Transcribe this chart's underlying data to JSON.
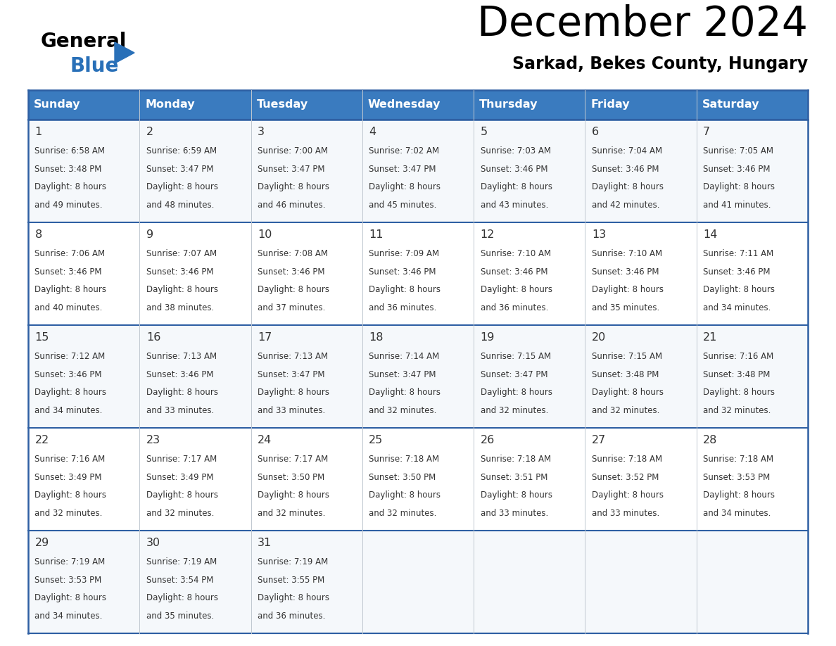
{
  "title": "December 2024",
  "subtitle": "Sarkad, Bekes County, Hungary",
  "header_bg_color": "#3a7bbf",
  "header_text_color": "#ffffff",
  "cell_bg_color": "#f0f4f8",
  "border_color": "#2e5fa3",
  "text_color": "#333333",
  "days_of_week": [
    "Sunday",
    "Monday",
    "Tuesday",
    "Wednesday",
    "Thursday",
    "Friday",
    "Saturday"
  ],
  "calendar_data": [
    [
      {
        "day": 1,
        "sunrise": "6:58 AM",
        "sunset": "3:48 PM",
        "daylight_line1": "8 hours",
        "daylight_line2": "and 49 minutes."
      },
      {
        "day": 2,
        "sunrise": "6:59 AM",
        "sunset": "3:47 PM",
        "daylight_line1": "8 hours",
        "daylight_line2": "and 48 minutes."
      },
      {
        "day": 3,
        "sunrise": "7:00 AM",
        "sunset": "3:47 PM",
        "daylight_line1": "8 hours",
        "daylight_line2": "and 46 minutes."
      },
      {
        "day": 4,
        "sunrise": "7:02 AM",
        "sunset": "3:47 PM",
        "daylight_line1": "8 hours",
        "daylight_line2": "and 45 minutes."
      },
      {
        "day": 5,
        "sunrise": "7:03 AM",
        "sunset": "3:46 PM",
        "daylight_line1": "8 hours",
        "daylight_line2": "and 43 minutes."
      },
      {
        "day": 6,
        "sunrise": "7:04 AM",
        "sunset": "3:46 PM",
        "daylight_line1": "8 hours",
        "daylight_line2": "and 42 minutes."
      },
      {
        "day": 7,
        "sunrise": "7:05 AM",
        "sunset": "3:46 PM",
        "daylight_line1": "8 hours",
        "daylight_line2": "and 41 minutes."
      }
    ],
    [
      {
        "day": 8,
        "sunrise": "7:06 AM",
        "sunset": "3:46 PM",
        "daylight_line1": "8 hours",
        "daylight_line2": "and 40 minutes."
      },
      {
        "day": 9,
        "sunrise": "7:07 AM",
        "sunset": "3:46 PM",
        "daylight_line1": "8 hours",
        "daylight_line2": "and 38 minutes."
      },
      {
        "day": 10,
        "sunrise": "7:08 AM",
        "sunset": "3:46 PM",
        "daylight_line1": "8 hours",
        "daylight_line2": "and 37 minutes."
      },
      {
        "day": 11,
        "sunrise": "7:09 AM",
        "sunset": "3:46 PM",
        "daylight_line1": "8 hours",
        "daylight_line2": "and 36 minutes."
      },
      {
        "day": 12,
        "sunrise": "7:10 AM",
        "sunset": "3:46 PM",
        "daylight_line1": "8 hours",
        "daylight_line2": "and 36 minutes."
      },
      {
        "day": 13,
        "sunrise": "7:10 AM",
        "sunset": "3:46 PM",
        "daylight_line1": "8 hours",
        "daylight_line2": "and 35 minutes."
      },
      {
        "day": 14,
        "sunrise": "7:11 AM",
        "sunset": "3:46 PM",
        "daylight_line1": "8 hours",
        "daylight_line2": "and 34 minutes."
      }
    ],
    [
      {
        "day": 15,
        "sunrise": "7:12 AM",
        "sunset": "3:46 PM",
        "daylight_line1": "8 hours",
        "daylight_line2": "and 34 minutes."
      },
      {
        "day": 16,
        "sunrise": "7:13 AM",
        "sunset": "3:46 PM",
        "daylight_line1": "8 hours",
        "daylight_line2": "and 33 minutes."
      },
      {
        "day": 17,
        "sunrise": "7:13 AM",
        "sunset": "3:47 PM",
        "daylight_line1": "8 hours",
        "daylight_line2": "and 33 minutes."
      },
      {
        "day": 18,
        "sunrise": "7:14 AM",
        "sunset": "3:47 PM",
        "daylight_line1": "8 hours",
        "daylight_line2": "and 32 minutes."
      },
      {
        "day": 19,
        "sunrise": "7:15 AM",
        "sunset": "3:47 PM",
        "daylight_line1": "8 hours",
        "daylight_line2": "and 32 minutes."
      },
      {
        "day": 20,
        "sunrise": "7:15 AM",
        "sunset": "3:48 PM",
        "daylight_line1": "8 hours",
        "daylight_line2": "and 32 minutes."
      },
      {
        "day": 21,
        "sunrise": "7:16 AM",
        "sunset": "3:48 PM",
        "daylight_line1": "8 hours",
        "daylight_line2": "and 32 minutes."
      }
    ],
    [
      {
        "day": 22,
        "sunrise": "7:16 AM",
        "sunset": "3:49 PM",
        "daylight_line1": "8 hours",
        "daylight_line2": "and 32 minutes."
      },
      {
        "day": 23,
        "sunrise": "7:17 AM",
        "sunset": "3:49 PM",
        "daylight_line1": "8 hours",
        "daylight_line2": "and 32 minutes."
      },
      {
        "day": 24,
        "sunrise": "7:17 AM",
        "sunset": "3:50 PM",
        "daylight_line1": "8 hours",
        "daylight_line2": "and 32 minutes."
      },
      {
        "day": 25,
        "sunrise": "7:18 AM",
        "sunset": "3:50 PM",
        "daylight_line1": "8 hours",
        "daylight_line2": "and 32 minutes."
      },
      {
        "day": 26,
        "sunrise": "7:18 AM",
        "sunset": "3:51 PM",
        "daylight_line1": "8 hours",
        "daylight_line2": "and 33 minutes."
      },
      {
        "day": 27,
        "sunrise": "7:18 AM",
        "sunset": "3:52 PM",
        "daylight_line1": "8 hours",
        "daylight_line2": "and 33 minutes."
      },
      {
        "day": 28,
        "sunrise": "7:18 AM",
        "sunset": "3:53 PM",
        "daylight_line1": "8 hours",
        "daylight_line2": "and 34 minutes."
      }
    ],
    [
      {
        "day": 29,
        "sunrise": "7:19 AM",
        "sunset": "3:53 PM",
        "daylight_line1": "8 hours",
        "daylight_line2": "and 34 minutes."
      },
      {
        "day": 30,
        "sunrise": "7:19 AM",
        "sunset": "3:54 PM",
        "daylight_line1": "8 hours",
        "daylight_line2": "and 35 minutes."
      },
      {
        "day": 31,
        "sunrise": "7:19 AM",
        "sunset": "3:55 PM",
        "daylight_line1": "8 hours",
        "daylight_line2": "and 36 minutes."
      },
      null,
      null,
      null,
      null
    ]
  ]
}
